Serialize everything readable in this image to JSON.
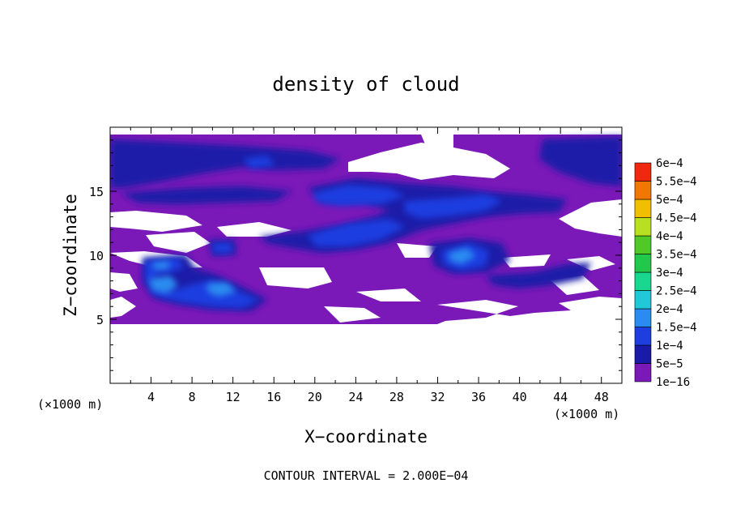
{
  "chart_data": {
    "type": "heatmap",
    "title": "density of cloud",
    "xlabel": "X−coordinate",
    "ylabel": "Z−coordinate",
    "x_unit_label": "(×1000 m)",
    "y_unit_label": "(×1000 m)",
    "footer": "CONTOUR INTERVAL = 2.000E−04",
    "xlim": [
      0,
      50
    ],
    "ylim": [
      0,
      20
    ],
    "x_ticks": [
      4,
      8,
      12,
      16,
      20,
      24,
      28,
      32,
      36,
      40,
      44,
      48
    ],
    "x_tick_labels": [
      "4",
      "8",
      "12",
      "16",
      "20",
      "24",
      "28",
      "32",
      "36",
      "40",
      "44",
      "48"
    ],
    "y_ticks": [
      5,
      10,
      15
    ],
    "y_tick_labels": [
      "5",
      "10",
      "15"
    ],
    "colorbar": {
      "levels": [
        "1e−16",
        "5e−5",
        "1e−4",
        "1.5e−4",
        "2e−4",
        "2.5e−4",
        "3e−4",
        "3.5e−4",
        "4e−4",
        "4.5e−4",
        "5e−4",
        "5.5e−4",
        "6e−4"
      ],
      "colors": [
        "#7a18b8",
        "#1a1aa8",
        "#1f3ee0",
        "#2a8cf0",
        "#20c8d8",
        "#18d890",
        "#22c84c",
        "#50c828",
        "#b8e020",
        "#f0c000",
        "#f07800",
        "#f02810",
        "#f08080"
      ]
    },
    "regions": [
      {
        "level": "1e−16",
        "x": [
          0,
          50
        ],
        "z": [
          5,
          19
        ]
      },
      {
        "level": "5e−5",
        "x": [
          0,
          10
        ],
        "z": [
          15,
          19
        ]
      },
      {
        "level": "5e−5",
        "x": [
          43,
          50
        ],
        "z": [
          16,
          19
        ]
      },
      {
        "level": "5e−5",
        "x": [
          20,
          45
        ],
        "z": [
          11,
          15
        ]
      },
      {
        "level": "1e−4",
        "x": [
          3,
          15
        ],
        "z": [
          6,
          10
        ]
      },
      {
        "level": "1e−4",
        "x": [
          32,
          38
        ],
        "z": [
          9,
          11
        ]
      },
      {
        "level": "1.5e−4",
        "x": [
          3,
          7
        ],
        "z": [
          7,
          8
        ]
      }
    ]
  }
}
